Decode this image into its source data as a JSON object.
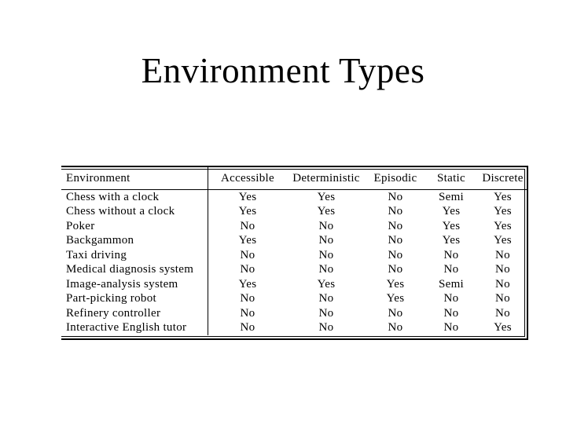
{
  "slide": {
    "title": "Environment Types"
  },
  "table": {
    "columns": [
      "Environment",
      "Accessible",
      "Deterministic",
      "Episodic",
      "Static",
      "Discrete"
    ],
    "rows": [
      {
        "environment": "Chess with a clock",
        "accessible": "Yes",
        "deterministic": "Yes",
        "episodic": "No",
        "static": "Semi",
        "discrete": "Yes"
      },
      {
        "environment": "Chess without a clock",
        "accessible": "Yes",
        "deterministic": "Yes",
        "episodic": "No",
        "static": "Yes",
        "discrete": "Yes"
      },
      {
        "environment": "Poker",
        "accessible": "No",
        "deterministic": "No",
        "episodic": "No",
        "static": "Yes",
        "discrete": "Yes"
      },
      {
        "environment": "Backgammon",
        "accessible": "Yes",
        "deterministic": "No",
        "episodic": "No",
        "static": "Yes",
        "discrete": "Yes"
      },
      {
        "environment": "Taxi driving",
        "accessible": "No",
        "deterministic": "No",
        "episodic": "No",
        "static": "No",
        "discrete": "No"
      },
      {
        "environment": "Medical diagnosis system",
        "accessible": "No",
        "deterministic": "No",
        "episodic": "No",
        "static": "No",
        "discrete": "No"
      },
      {
        "environment": "Image-analysis system",
        "accessible": "Yes",
        "deterministic": "Yes",
        "episodic": "Yes",
        "static": "Semi",
        "discrete": "No"
      },
      {
        "environment": "Part-picking robot",
        "accessible": "No",
        "deterministic": "No",
        "episodic": "Yes",
        "static": "No",
        "discrete": "No"
      },
      {
        "environment": "Refinery controller",
        "accessible": "No",
        "deterministic": "No",
        "episodic": "No",
        "static": "No",
        "discrete": "No"
      },
      {
        "environment": "Interactive English tutor",
        "accessible": "No",
        "deterministic": "No",
        "episodic": "No",
        "static": "No",
        "discrete": "Yes"
      }
    ]
  },
  "colors": {
    "background": "#ffffff",
    "text": "#000000",
    "rule": "#000000"
  }
}
